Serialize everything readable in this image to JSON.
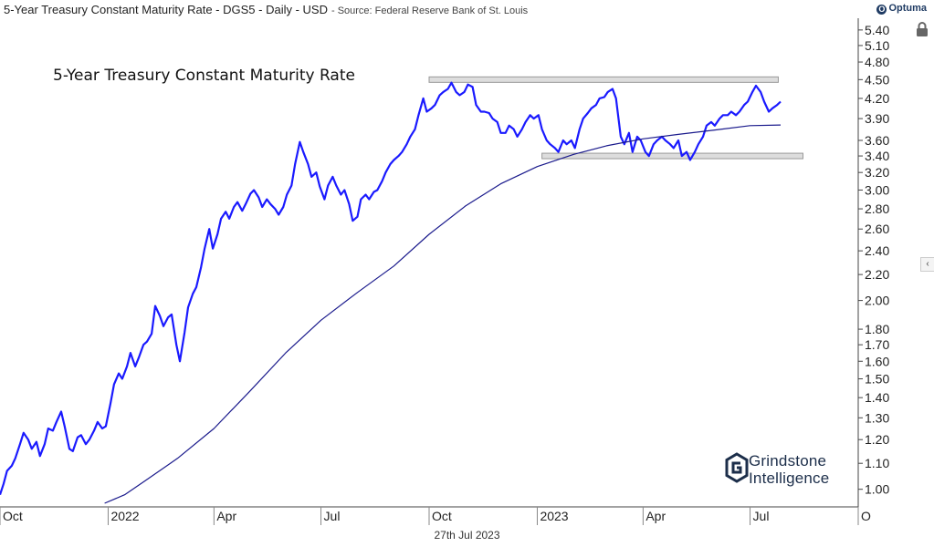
{
  "header": {
    "title": "5-Year Treasury Constant Maturity Rate - DGS5 - Daily - USD",
    "source": "- Source: Federal Reserve Bank of St. Louis",
    "brand": "Optuma"
  },
  "logo": {
    "line1": "Grindstone",
    "line2": "Intelligence"
  },
  "date_label": "27th Jul 2023",
  "colors": {
    "price_line": "#1a1aff",
    "moving_average": "#1a1a8c",
    "band_fill": "#dddddd",
    "band_stroke": "#999999",
    "axis_line": "#444444",
    "text": "#222222"
  },
  "chart_data": {
    "type": "line",
    "title": "5-Year Treasury Constant Maturity Rate",
    "y_scale": "log",
    "ylim": [
      0.95,
      5.6
    ],
    "y_ticks": [
      1.0,
      1.1,
      1.2,
      1.3,
      1.4,
      1.5,
      1.6,
      1.7,
      1.8,
      2.0,
      2.2,
      2.4,
      2.6,
      2.8,
      3.0,
      3.2,
      3.4,
      3.6,
      3.9,
      4.2,
      4.5,
      4.8,
      5.1,
      5.4
    ],
    "y_tick_labels": [
      "1.00",
      "1.10",
      "1.20",
      "1.30",
      "1.40",
      "1.50",
      "1.60",
      "1.70",
      "1.80",
      "2.00",
      "2.20",
      "2.40",
      "2.60",
      "2.80",
      "3.00",
      "3.20",
      "3.40",
      "3.60",
      "3.90",
      "4.20",
      "4.50",
      "4.80",
      "5.10",
      "5.40"
    ],
    "xlim": [
      "2021-10-01",
      "2023-10-01"
    ],
    "x_ticks": [
      {
        "date": "2021-10-01",
        "label": "Oct"
      },
      {
        "date": "2022-01-01",
        "label": "2022"
      },
      {
        "date": "2022-04-01",
        "label": "Apr"
      },
      {
        "date": "2022-07-01",
        "label": "Jul"
      },
      {
        "date": "2022-10-01",
        "label": "Oct"
      },
      {
        "date": "2023-01-01",
        "label": "2023"
      },
      {
        "date": "2023-04-01",
        "label": "Apr"
      },
      {
        "date": "2023-07-01",
        "label": "Jul"
      },
      {
        "date": "2023-10-01",
        "label": "O"
      }
    ],
    "bands": [
      {
        "name": "resistance",
        "value": 4.5,
        "x_start": "2022-10-01",
        "x_end": "2023-07-25"
      },
      {
        "name": "support",
        "value": 3.4,
        "x_start": "2023-01-05",
        "x_end": "2023-08-15"
      }
    ],
    "series": [
      {
        "name": "DGS5",
        "points": [
          [
            "2021-10-01",
            0.98
          ],
          [
            "2021-10-04",
            1.02
          ],
          [
            "2021-10-07",
            1.07
          ],
          [
            "2021-10-11",
            1.09
          ],
          [
            "2021-10-14",
            1.12
          ],
          [
            "2021-10-18",
            1.18
          ],
          [
            "2021-10-21",
            1.23
          ],
          [
            "2021-10-25",
            1.2
          ],
          [
            "2021-10-28",
            1.16
          ],
          [
            "2021-11-01",
            1.19
          ],
          [
            "2021-11-04",
            1.13
          ],
          [
            "2021-11-08",
            1.18
          ],
          [
            "2021-11-11",
            1.25
          ],
          [
            "2021-11-15",
            1.24
          ],
          [
            "2021-11-18",
            1.28
          ],
          [
            "2021-11-22",
            1.33
          ],
          [
            "2021-11-25",
            1.26
          ],
          [
            "2021-11-29",
            1.16
          ],
          [
            "2021-12-02",
            1.15
          ],
          [
            "2021-12-06",
            1.21
          ],
          [
            "2021-12-09",
            1.22
          ],
          [
            "2021-12-13",
            1.18
          ],
          [
            "2021-12-16",
            1.2
          ],
          [
            "2021-12-20",
            1.24
          ],
          [
            "2021-12-23",
            1.28
          ],
          [
            "2021-12-27",
            1.25
          ],
          [
            "2021-12-30",
            1.26
          ],
          [
            "2022-01-03",
            1.37
          ],
          [
            "2022-01-06",
            1.47
          ],
          [
            "2022-01-10",
            1.53
          ],
          [
            "2022-01-13",
            1.5
          ],
          [
            "2022-01-17",
            1.57
          ],
          [
            "2022-01-20",
            1.65
          ],
          [
            "2022-01-24",
            1.57
          ],
          [
            "2022-01-27",
            1.62
          ],
          [
            "2022-01-31",
            1.7
          ],
          [
            "2022-02-03",
            1.72
          ],
          [
            "2022-02-07",
            1.77
          ],
          [
            "2022-02-10",
            1.96
          ],
          [
            "2022-02-14",
            1.89
          ],
          [
            "2022-02-17",
            1.82
          ],
          [
            "2022-02-21",
            1.88
          ],
          [
            "2022-02-24",
            1.9
          ],
          [
            "2022-02-28",
            1.7
          ],
          [
            "2022-03-03",
            1.6
          ],
          [
            "2022-03-07",
            1.78
          ],
          [
            "2022-03-10",
            1.95
          ],
          [
            "2022-03-14",
            2.05
          ],
          [
            "2022-03-17",
            2.1
          ],
          [
            "2022-03-21",
            2.26
          ],
          [
            "2022-03-24",
            2.42
          ],
          [
            "2022-03-28",
            2.6
          ],
          [
            "2022-03-31",
            2.42
          ],
          [
            "2022-04-04",
            2.55
          ],
          [
            "2022-04-07",
            2.7
          ],
          [
            "2022-04-11",
            2.77
          ],
          [
            "2022-04-14",
            2.7
          ],
          [
            "2022-04-18",
            2.82
          ],
          [
            "2022-04-21",
            2.87
          ],
          [
            "2022-04-25",
            2.78
          ],
          [
            "2022-04-28",
            2.85
          ],
          [
            "2022-05-02",
            2.96
          ],
          [
            "2022-05-05",
            3.0
          ],
          [
            "2022-05-09",
            2.92
          ],
          [
            "2022-05-12",
            2.82
          ],
          [
            "2022-05-16",
            2.9
          ],
          [
            "2022-05-19",
            2.85
          ],
          [
            "2022-05-23",
            2.8
          ],
          [
            "2022-05-26",
            2.74
          ],
          [
            "2022-05-30",
            2.82
          ],
          [
            "2022-06-02",
            2.95
          ],
          [
            "2022-06-06",
            3.05
          ],
          [
            "2022-06-09",
            3.3
          ],
          [
            "2022-06-13",
            3.58
          ],
          [
            "2022-06-16",
            3.45
          ],
          [
            "2022-06-20",
            3.3
          ],
          [
            "2022-06-23",
            3.15
          ],
          [
            "2022-06-27",
            3.2
          ],
          [
            "2022-06-30",
            3.04
          ],
          [
            "2022-07-04",
            2.9
          ],
          [
            "2022-07-07",
            3.05
          ],
          [
            "2022-07-11",
            3.15
          ],
          [
            "2022-07-14",
            3.05
          ],
          [
            "2022-07-18",
            2.95
          ],
          [
            "2022-07-21",
            3.0
          ],
          [
            "2022-07-25",
            2.85
          ],
          [
            "2022-07-28",
            2.68
          ],
          [
            "2022-08-01",
            2.72
          ],
          [
            "2022-08-04",
            2.9
          ],
          [
            "2022-08-08",
            2.95
          ],
          [
            "2022-08-11",
            2.9
          ],
          [
            "2022-08-15",
            2.98
          ],
          [
            "2022-08-18",
            3.0
          ],
          [
            "2022-08-22",
            3.1
          ],
          [
            "2022-08-25",
            3.2
          ],
          [
            "2022-08-29",
            3.3
          ],
          [
            "2022-09-01",
            3.35
          ],
          [
            "2022-09-05",
            3.4
          ],
          [
            "2022-09-08",
            3.45
          ],
          [
            "2022-09-12",
            3.55
          ],
          [
            "2022-09-15",
            3.65
          ],
          [
            "2022-09-19",
            3.75
          ],
          [
            "2022-09-22",
            3.95
          ],
          [
            "2022-09-26",
            4.2
          ],
          [
            "2022-09-29",
            4.0
          ],
          [
            "2022-10-03",
            4.05
          ],
          [
            "2022-10-06",
            4.1
          ],
          [
            "2022-10-10",
            4.25
          ],
          [
            "2022-10-13",
            4.3
          ],
          [
            "2022-10-17",
            4.35
          ],
          [
            "2022-10-20",
            4.45
          ],
          [
            "2022-10-24",
            4.3
          ],
          [
            "2022-10-27",
            4.25
          ],
          [
            "2022-10-31",
            4.3
          ],
          [
            "2022-11-03",
            4.42
          ],
          [
            "2022-11-07",
            4.38
          ],
          [
            "2022-11-10",
            4.1
          ],
          [
            "2022-11-14",
            4.0
          ],
          [
            "2022-11-17",
            4.0
          ],
          [
            "2022-11-21",
            3.98
          ],
          [
            "2022-11-24",
            3.9
          ],
          [
            "2022-11-28",
            3.85
          ],
          [
            "2022-12-01",
            3.7
          ],
          [
            "2022-12-05",
            3.7
          ],
          [
            "2022-12-08",
            3.8
          ],
          [
            "2022-12-12",
            3.75
          ],
          [
            "2022-12-15",
            3.65
          ],
          [
            "2022-12-19",
            3.75
          ],
          [
            "2022-12-22",
            3.85
          ],
          [
            "2022-12-26",
            3.95
          ],
          [
            "2022-12-29",
            3.9
          ],
          [
            "2023-01-02",
            3.95
          ],
          [
            "2023-01-05",
            3.75
          ],
          [
            "2023-01-09",
            3.6
          ],
          [
            "2023-01-12",
            3.55
          ],
          [
            "2023-01-16",
            3.5
          ],
          [
            "2023-01-19",
            3.45
          ],
          [
            "2023-01-23",
            3.6
          ],
          [
            "2023-01-26",
            3.55
          ],
          [
            "2023-01-30",
            3.6
          ],
          [
            "2023-02-02",
            3.5
          ],
          [
            "2023-02-06",
            3.75
          ],
          [
            "2023-02-09",
            3.9
          ],
          [
            "2023-02-13",
            3.98
          ],
          [
            "2023-02-16",
            4.05
          ],
          [
            "2023-02-20",
            4.1
          ],
          [
            "2023-02-23",
            4.2
          ],
          [
            "2023-02-27",
            4.22
          ],
          [
            "2023-03-02",
            4.3
          ],
          [
            "2023-03-06",
            4.35
          ],
          [
            "2023-03-09",
            4.2
          ],
          [
            "2023-03-13",
            3.65
          ],
          [
            "2023-03-16",
            3.55
          ],
          [
            "2023-03-20",
            3.7
          ],
          [
            "2023-03-23",
            3.45
          ],
          [
            "2023-03-27",
            3.65
          ],
          [
            "2023-03-30",
            3.6
          ],
          [
            "2023-04-03",
            3.45
          ],
          [
            "2023-04-06",
            3.4
          ],
          [
            "2023-04-10",
            3.55
          ],
          [
            "2023-04-13",
            3.6
          ],
          [
            "2023-04-17",
            3.65
          ],
          [
            "2023-04-20",
            3.6
          ],
          [
            "2023-04-24",
            3.55
          ],
          [
            "2023-04-27",
            3.5
          ],
          [
            "2023-05-01",
            3.6
          ],
          [
            "2023-05-04",
            3.4
          ],
          [
            "2023-05-08",
            3.45
          ],
          [
            "2023-05-11",
            3.35
          ],
          [
            "2023-05-15",
            3.45
          ],
          [
            "2023-05-18",
            3.55
          ],
          [
            "2023-05-22",
            3.65
          ],
          [
            "2023-05-25",
            3.8
          ],
          [
            "2023-05-29",
            3.85
          ],
          [
            "2023-06-01",
            3.8
          ],
          [
            "2023-06-05",
            3.9
          ],
          [
            "2023-06-08",
            3.95
          ],
          [
            "2023-06-12",
            3.95
          ],
          [
            "2023-06-15",
            4.0
          ],
          [
            "2023-06-19",
            3.95
          ],
          [
            "2023-06-22",
            4.0
          ],
          [
            "2023-06-26",
            4.1
          ],
          [
            "2023-06-29",
            4.15
          ],
          [
            "2023-07-03",
            4.3
          ],
          [
            "2023-07-06",
            4.4
          ],
          [
            "2023-07-10",
            4.3
          ],
          [
            "2023-07-13",
            4.15
          ],
          [
            "2023-07-17",
            4.0
          ],
          [
            "2023-07-20",
            4.05
          ],
          [
            "2023-07-24",
            4.1
          ],
          [
            "2023-07-27",
            4.15
          ]
        ]
      },
      {
        "name": "Moving Average",
        "points": [
          [
            "2021-12-29",
            0.95
          ],
          [
            "2022-01-15",
            0.98
          ],
          [
            "2022-02-01",
            1.03
          ],
          [
            "2022-03-01",
            1.12
          ],
          [
            "2022-04-01",
            1.25
          ],
          [
            "2022-05-01",
            1.43
          ],
          [
            "2022-06-01",
            1.65
          ],
          [
            "2022-07-01",
            1.86
          ],
          [
            "2022-08-01",
            2.06
          ],
          [
            "2022-09-01",
            2.27
          ],
          [
            "2022-10-01",
            2.55
          ],
          [
            "2022-11-01",
            2.83
          ],
          [
            "2022-12-01",
            3.07
          ],
          [
            "2023-01-01",
            3.27
          ],
          [
            "2023-02-01",
            3.42
          ],
          [
            "2023-03-01",
            3.53
          ],
          [
            "2023-04-01",
            3.62
          ],
          [
            "2023-05-01",
            3.68
          ],
          [
            "2023-06-01",
            3.74
          ],
          [
            "2023-07-01",
            3.8
          ],
          [
            "2023-07-27",
            3.81
          ]
        ]
      }
    ]
  }
}
